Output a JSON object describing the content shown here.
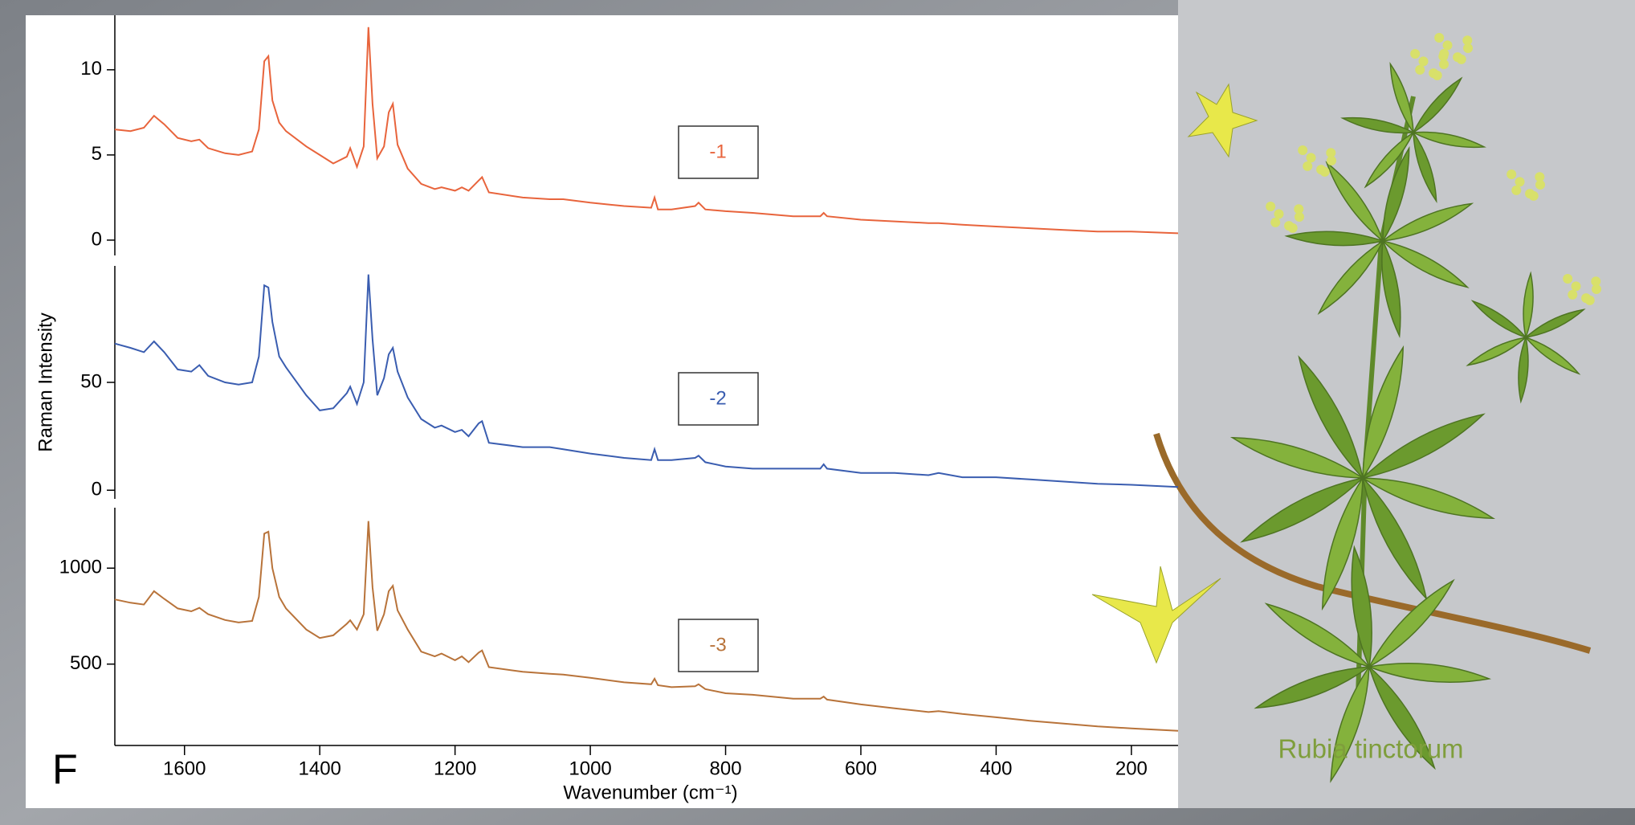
{
  "chart_data": [
    {
      "type": "line",
      "annotation": "-1",
      "color": "#e8643c",
      "xlim": [
        1703,
        131
      ],
      "ylim": [
        -0.9,
        13.2
      ],
      "yticks": [
        0,
        5,
        10
      ],
      "x": [
        1703,
        1680,
        1660,
        1645,
        1630,
        1610,
        1590,
        1578,
        1565,
        1540,
        1520,
        1500,
        1490,
        1482,
        1476,
        1470,
        1460,
        1450,
        1420,
        1400,
        1380,
        1360,
        1355,
        1345,
        1335,
        1328,
        1322,
        1315,
        1305,
        1298,
        1292,
        1285,
        1270,
        1250,
        1230,
        1220,
        1200,
        1190,
        1180,
        1165,
        1160,
        1150,
        1100,
        1060,
        1040,
        1000,
        950,
        910,
        905,
        900,
        880,
        845,
        840,
        830,
        800,
        760,
        700,
        660,
        655,
        650,
        600,
        550,
        500,
        485,
        450,
        400,
        350,
        300,
        250,
        200,
        131
      ],
      "values": [
        6.5,
        6.4,
        6.6,
        7.3,
        6.8,
        6.0,
        5.8,
        5.9,
        5.4,
        5.1,
        5.0,
        5.2,
        6.5,
        10.5,
        10.8,
        8.2,
        6.9,
        6.4,
        5.5,
        5.0,
        4.5,
        4.9,
        5.4,
        4.3,
        5.5,
        12.5,
        8.0,
        4.8,
        5.5,
        7.5,
        8.0,
        5.6,
        4.2,
        3.3,
        3.0,
        3.1,
        2.9,
        3.1,
        2.9,
        3.5,
        3.7,
        2.8,
        2.5,
        2.4,
        2.4,
        2.2,
        2.0,
        1.9,
        2.5,
        1.8,
        1.8,
        2.0,
        2.2,
        1.8,
        1.7,
        1.6,
        1.4,
        1.4,
        1.6,
        1.4,
        1.2,
        1.1,
        1.0,
        1.0,
        0.9,
        0.8,
        0.7,
        0.6,
        0.5,
        0.5,
        0.4
      ]
    },
    {
      "type": "line",
      "annotation": "-2",
      "color": "#3a5db0",
      "ylabel": "Raman Intensity",
      "xlim": [
        1703,
        131
      ],
      "ylim": [
        -4,
        104
      ],
      "yticks": [
        0,
        50
      ],
      "x": [
        1703,
        1680,
        1660,
        1645,
        1630,
        1610,
        1590,
        1578,
        1565,
        1540,
        1520,
        1500,
        1490,
        1482,
        1476,
        1470,
        1460,
        1450,
        1420,
        1400,
        1380,
        1360,
        1355,
        1345,
        1335,
        1328,
        1322,
        1315,
        1305,
        1298,
        1292,
        1285,
        1270,
        1250,
        1230,
        1220,
        1200,
        1190,
        1180,
        1165,
        1160,
        1150,
        1100,
        1060,
        1040,
        1000,
        950,
        910,
        905,
        900,
        880,
        845,
        840,
        830,
        800,
        760,
        700,
        660,
        655,
        650,
        600,
        550,
        500,
        485,
        450,
        400,
        350,
        300,
        250,
        200,
        131
      ],
      "values": [
        68,
        66,
        64,
        69,
        64,
        56,
        55,
        58,
        53,
        50,
        49,
        50,
        62,
        95,
        94,
        78,
        62,
        57,
        44,
        37,
        38,
        45,
        48,
        40,
        50,
        100,
        70,
        44,
        52,
        63,
        66,
        55,
        43,
        33,
        29,
        30,
        27,
        28,
        25,
        31,
        32,
        22,
        20,
        20,
        19,
        17,
        15,
        14,
        19,
        14,
        14,
        15,
        16,
        13,
        11,
        10,
        10,
        10,
        12,
        10,
        8,
        8,
        7,
        8,
        6,
        6,
        5,
        4,
        3,
        2.5,
        1.5
      ]
    },
    {
      "type": "line",
      "annotation": "-3",
      "color": "#b8733a",
      "xlabel": "Wavenumber (cm⁻¹)",
      "xlim": [
        1703,
        131
      ],
      "ylim": [
        76,
        1315
      ],
      "yticks": [
        500,
        1000
      ],
      "xticks": [
        1600,
        1400,
        1200,
        1000,
        800,
        600,
        400,
        200
      ],
      "x": [
        1703,
        1680,
        1660,
        1645,
        1630,
        1610,
        1590,
        1578,
        1565,
        1540,
        1520,
        1500,
        1490,
        1482,
        1476,
        1470,
        1460,
        1450,
        1420,
        1400,
        1380,
        1360,
        1355,
        1345,
        1335,
        1328,
        1322,
        1315,
        1305,
        1298,
        1292,
        1285,
        1270,
        1250,
        1230,
        1220,
        1200,
        1190,
        1180,
        1165,
        1160,
        1150,
        1100,
        1060,
        1040,
        1000,
        950,
        910,
        905,
        900,
        880,
        845,
        840,
        830,
        800,
        760,
        700,
        660,
        655,
        650,
        600,
        550,
        500,
        485,
        450,
        400,
        350,
        300,
        250,
        200,
        131
      ],
      "values": [
        837,
        820,
        810,
        880,
        840,
        790,
        775,
        793,
        760,
        730,
        717,
        725,
        850,
        1180,
        1190,
        1000,
        850,
        790,
        680,
        636,
        650,
        710,
        728,
        680,
        760,
        1245,
        900,
        674,
        760,
        880,
        908,
        780,
        680,
        565,
        540,
        555,
        520,
        540,
        510,
        560,
        571,
        484,
        460,
        450,
        445,
        429,
        405,
        395,
        424,
        390,
        380,
        385,
        395,
        370,
        348,
        340,
        320,
        320,
        331,
        315,
        290,
        270,
        250,
        255,
        240,
        223,
        205,
        190,
        175,
        165,
        152
      ]
    }
  ],
  "panel_label": "F",
  "caption": "Rubia tinctorum"
}
